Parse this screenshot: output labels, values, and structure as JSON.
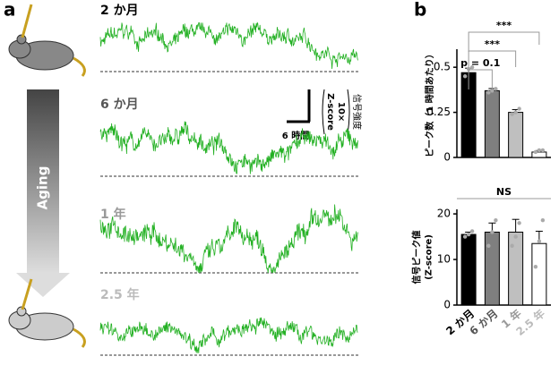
{
  "panel_labels": [
    "a",
    "b"
  ],
  "panel_a": {
    "aging_label": "Aging",
    "trace_color": "#22b022",
    "traces": [
      {
        "label": "2 か月",
        "color": "#000000"
      },
      {
        "label": "6 か月",
        "color": "#555555"
      },
      {
        "label": "1 年",
        "color": "#999999"
      },
      {
        "label": "2.5 年",
        "color": "#bbbbbb"
      }
    ],
    "scale_bar": {
      "x_label": "6 時間",
      "y_label": [
        "信号強度",
        "10×",
        "Z-score"
      ]
    }
  },
  "chart_data": [
    {
      "type": "bar",
      "ylabel": [
        "ピーク数（1 時間あたり）"
      ],
      "values": [
        0.47,
        0.37,
        0.25,
        0.03
      ],
      "errors": [
        0.025,
        0.012,
        0.015,
        0.008
      ],
      "points": [
        [
          0.45,
          0.49,
          0.5
        ],
        [
          0.36,
          0.37,
          0.38
        ],
        [
          0.24,
          0.25,
          0.27
        ],
        [
          0.03,
          0.04,
          0.04
        ]
      ],
      "colors": [
        "#000000",
        "#7f7f7f",
        "#bfbfbf",
        "#ffffff"
      ],
      "ylim": [
        0,
        0.6
      ],
      "yticks": [
        0,
        0.25,
        0.5
      ],
      "annotations": [
        "***",
        "***",
        "p = 0.1"
      ]
    },
    {
      "type": "bar",
      "ylabel": [
        "信号ピーク値",
        "(Z-score)"
      ],
      "categories": [
        "2 か月",
        "6 か月",
        "1 年",
        "2.5 年"
      ],
      "category_colors": [
        "#000000",
        "#555555",
        "#999999",
        "#bbbbbb"
      ],
      "values": [
        15.5,
        16,
        16,
        13.5
      ],
      "errors": [
        0.5,
        2,
        2.8,
        2.7
      ],
      "points": [
        [
          15,
          15.5,
          16.2
        ],
        [
          13,
          16,
          18.6
        ],
        [
          13,
          15,
          18
        ],
        [
          8.4,
          14,
          18.6
        ]
      ],
      "colors": [
        "#000000",
        "#7f7f7f",
        "#bfbfbf",
        "#ffffff"
      ],
      "ylim": [
        0,
        21
      ],
      "yticks": [
        0,
        10,
        20
      ],
      "annotations": [
        "NS"
      ]
    }
  ]
}
